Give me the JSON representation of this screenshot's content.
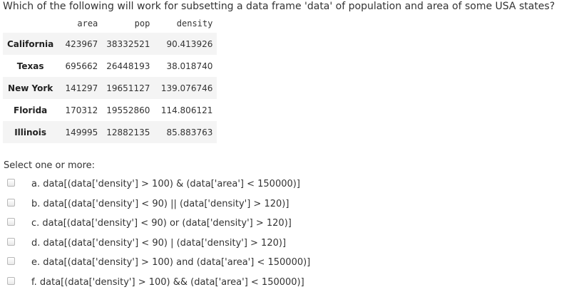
{
  "question": "Which of the following will work for subsetting a data frame 'data' of population and area of some USA states?",
  "table": {
    "columns": [
      "area",
      "pop",
      "density"
    ],
    "rows": [
      {
        "label": "California",
        "values": [
          "423967",
          "38332521",
          "90.413926"
        ]
      },
      {
        "label": "Texas",
        "values": [
          "695662",
          "26448193",
          "38.018740"
        ]
      },
      {
        "label": "New York",
        "values": [
          "141297",
          "19651127",
          "139.076746"
        ]
      },
      {
        "label": "Florida",
        "values": [
          "170312",
          "19552860",
          "114.806121"
        ]
      },
      {
        "label": "Illinois",
        "values": [
          "149995",
          "12882135",
          "85.883763"
        ]
      }
    ]
  },
  "select_label": "Select one or more:",
  "options": [
    {
      "text": "a. data[(data['density'] > 100) & (data['area'] < 150000)]"
    },
    {
      "text": "b. data[(data['density'] < 90) || (data['density'] > 120)]"
    },
    {
      "text": "c. data[(data['density'] < 90) or (data['density'] > 120)]"
    },
    {
      "text": "d. data[(data['density'] < 90) | (data['density'] > 120)]"
    },
    {
      "text": "e. data[(data['density'] > 100) and (data['area'] < 150000)]"
    },
    {
      "text": "f. data[(data['density'] > 100) && (data['area'] < 150000)]"
    }
  ]
}
